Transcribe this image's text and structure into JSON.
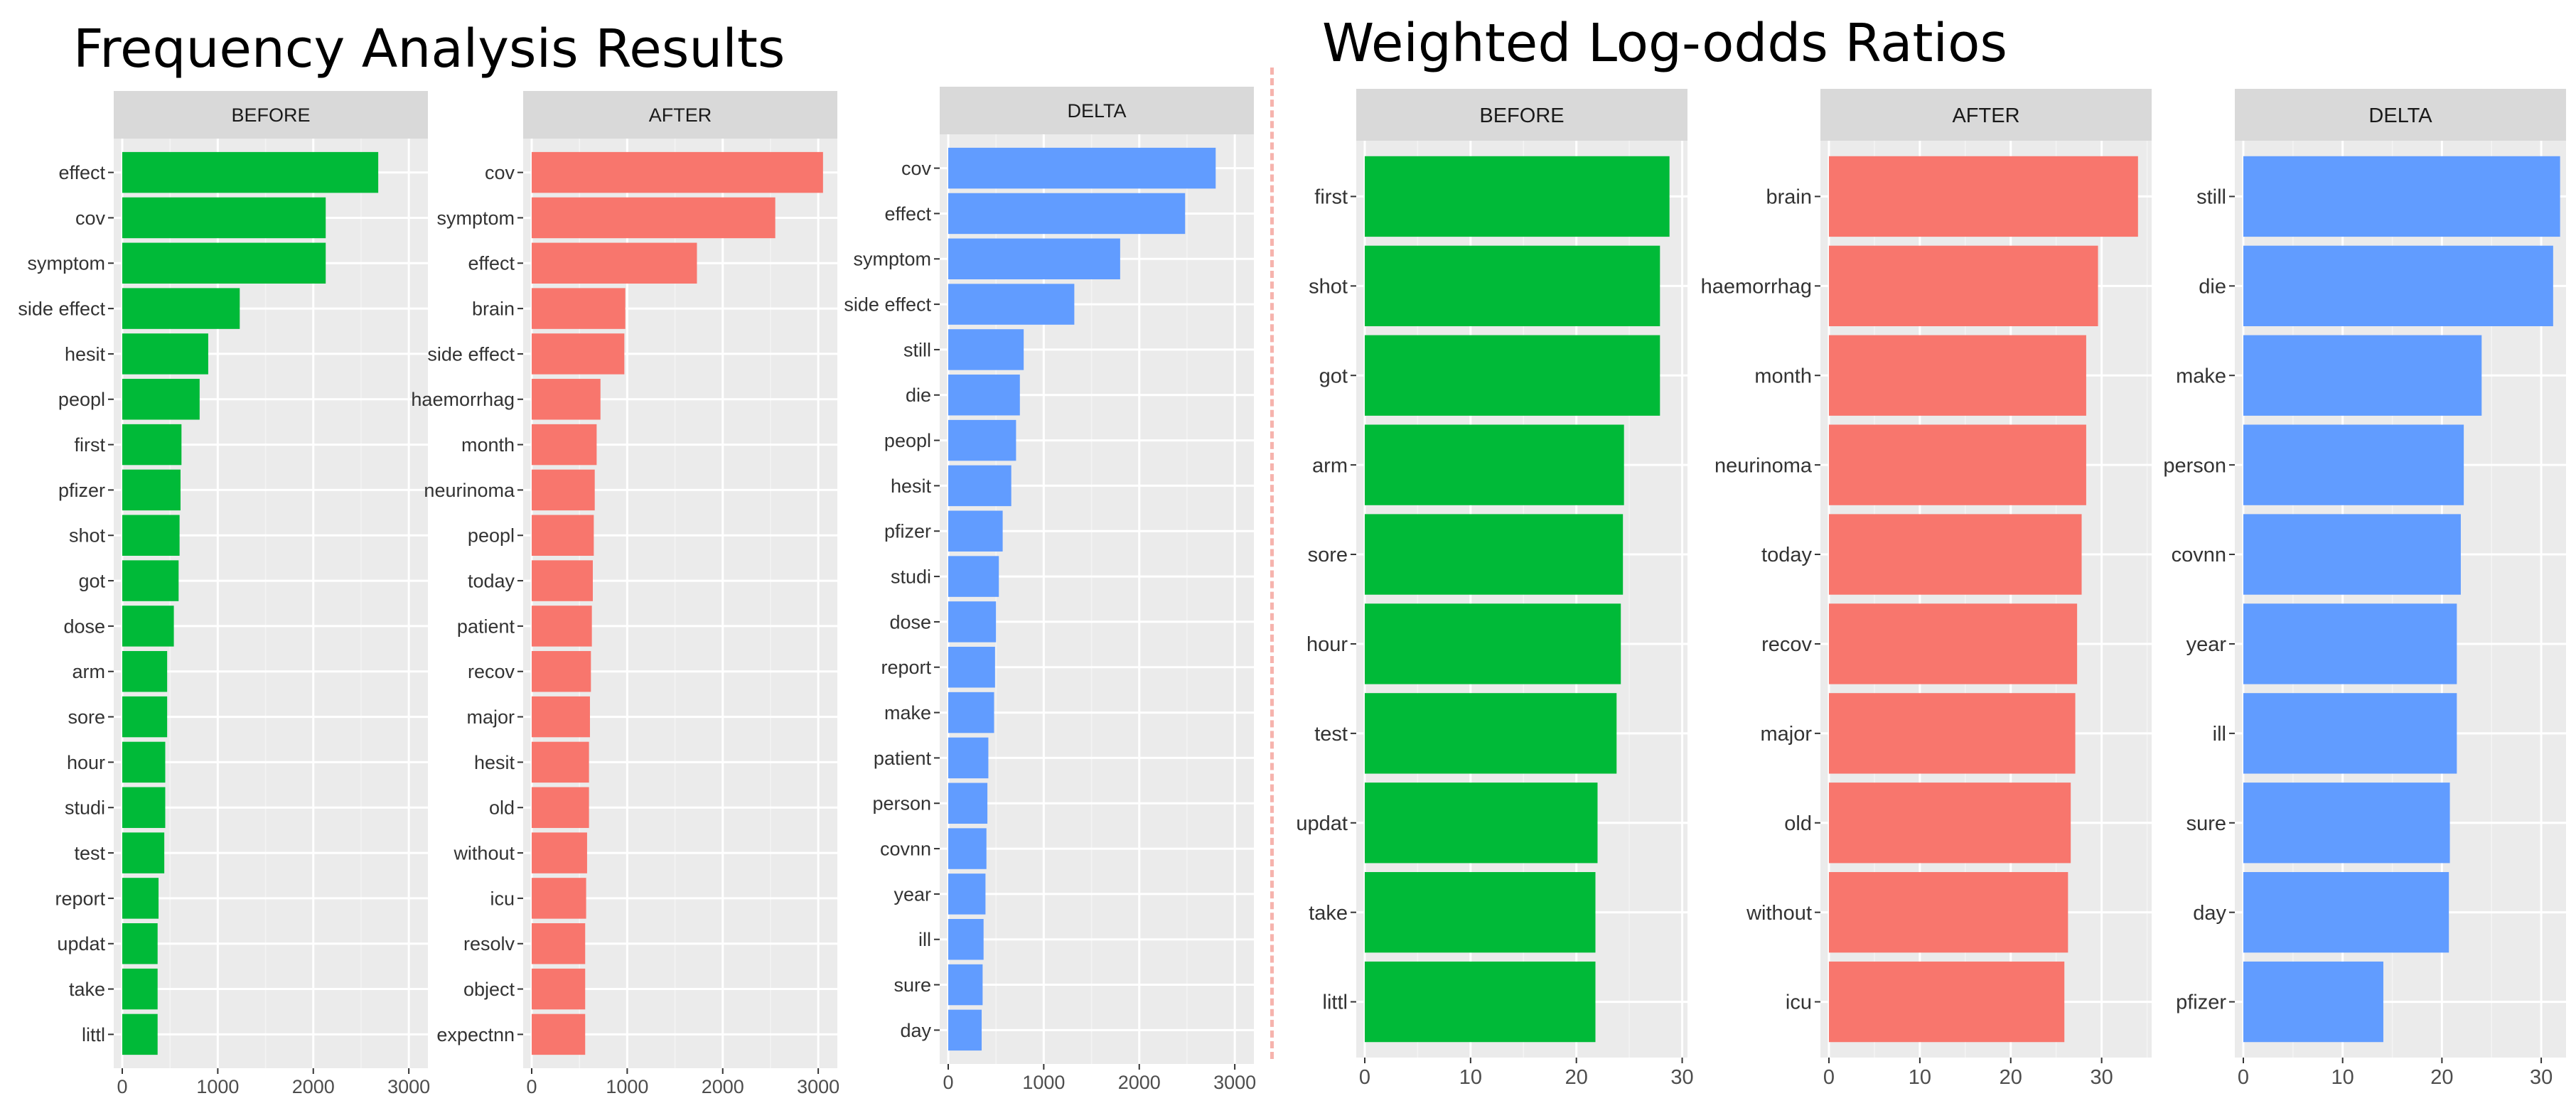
{
  "sections": {
    "left_title": "Frequency Analysis Results",
    "right_title": "Weighted Log-odds Ratios"
  },
  "chart_data": [
    {
      "type": "bar",
      "orientation": "horizontal",
      "title": "Frequency Analysis Results",
      "facets": [
        {
          "label": "BEFORE",
          "color": "#00BA38",
          "categories": [
            "effect",
            "cov",
            "symptom",
            "side effect",
            "hesit",
            "peopl",
            "first",
            "pfizer",
            "shot",
            "got",
            "dose",
            "arm",
            "sore",
            "hour",
            "studi",
            "test",
            "report",
            "updat",
            "take",
            "littl"
          ],
          "values": [
            2680,
            2130,
            2130,
            1230,
            900,
            810,
            620,
            610,
            600,
            590,
            540,
            470,
            470,
            450,
            450,
            440,
            380,
            370,
            370,
            370
          ],
          "xlim": [
            0,
            3200
          ],
          "xticks": [
            0,
            1000,
            2000,
            3000
          ]
        },
        {
          "label": "AFTER",
          "color": "#F8766D",
          "categories": [
            "cov",
            "symptom",
            "effect",
            "brain",
            "side effect",
            "haemorrhag",
            "month",
            "neurinoma",
            "peopl",
            "today",
            "patient",
            "recov",
            "major",
            "hesit",
            "old",
            "without",
            "icu",
            "resolv",
            "object",
            "expectnn"
          ],
          "values": [
            3050,
            2550,
            1730,
            980,
            970,
            720,
            680,
            660,
            650,
            640,
            630,
            620,
            610,
            600,
            600,
            580,
            570,
            560,
            560,
            560
          ],
          "xlim": [
            0,
            3200
          ],
          "xticks": [
            0,
            1000,
            2000,
            3000
          ]
        },
        {
          "label": "DELTA",
          "color": "#619CFF",
          "categories": [
            "cov",
            "effect",
            "symptom",
            "side effect",
            "still",
            "die",
            "peopl",
            "hesit",
            "pfizer",
            "studi",
            "dose",
            "report",
            "make",
            "patient",
            "person",
            "covnn",
            "year",
            "ill",
            "sure",
            "day"
          ],
          "values": [
            2800,
            2480,
            1800,
            1320,
            790,
            750,
            710,
            660,
            570,
            530,
            500,
            490,
            480,
            420,
            410,
            400,
            390,
            370,
            360,
            350
          ],
          "xlim": [
            0,
            3200
          ],
          "xticks": [
            0,
            1000,
            2000,
            3000
          ]
        }
      ]
    },
    {
      "type": "bar",
      "orientation": "horizontal",
      "title": "Weighted Log-odds Ratios",
      "facets": [
        {
          "label": "BEFORE",
          "color": "#00BA38",
          "categories": [
            "first",
            "shot",
            "got",
            "arm",
            "sore",
            "hour",
            "test",
            "updat",
            "take",
            "littl"
          ],
          "values": [
            28.8,
            27.9,
            27.9,
            24.5,
            24.4,
            24.2,
            23.8,
            22.0,
            21.8,
            21.8
          ],
          "xlim": [
            0,
            30.5
          ],
          "xticks": [
            0,
            10,
            20,
            30
          ]
        },
        {
          "label": "AFTER",
          "color": "#F8766D",
          "categories": [
            "brain",
            "haemorrhag",
            "month",
            "neurinoma",
            "today",
            "recov",
            "major",
            "old",
            "without",
            "icu"
          ],
          "values": [
            34.0,
            29.6,
            28.3,
            28.3,
            27.8,
            27.3,
            27.1,
            26.6,
            26.3,
            25.9
          ],
          "xlim": [
            0,
            35.5
          ],
          "xticks": [
            0,
            10,
            20,
            30
          ]
        },
        {
          "label": "DELTA",
          "color": "#619CFF",
          "categories": [
            "still",
            "die",
            "make",
            "person",
            "covnn",
            "year",
            "ill",
            "sure",
            "day",
            "pfizer"
          ],
          "values": [
            31.9,
            31.2,
            24.0,
            22.2,
            21.9,
            21.5,
            21.5,
            20.8,
            20.7,
            14.1
          ],
          "xlim": [
            0,
            32.5
          ],
          "xticks": [
            0,
            10,
            20,
            30
          ]
        }
      ]
    }
  ]
}
